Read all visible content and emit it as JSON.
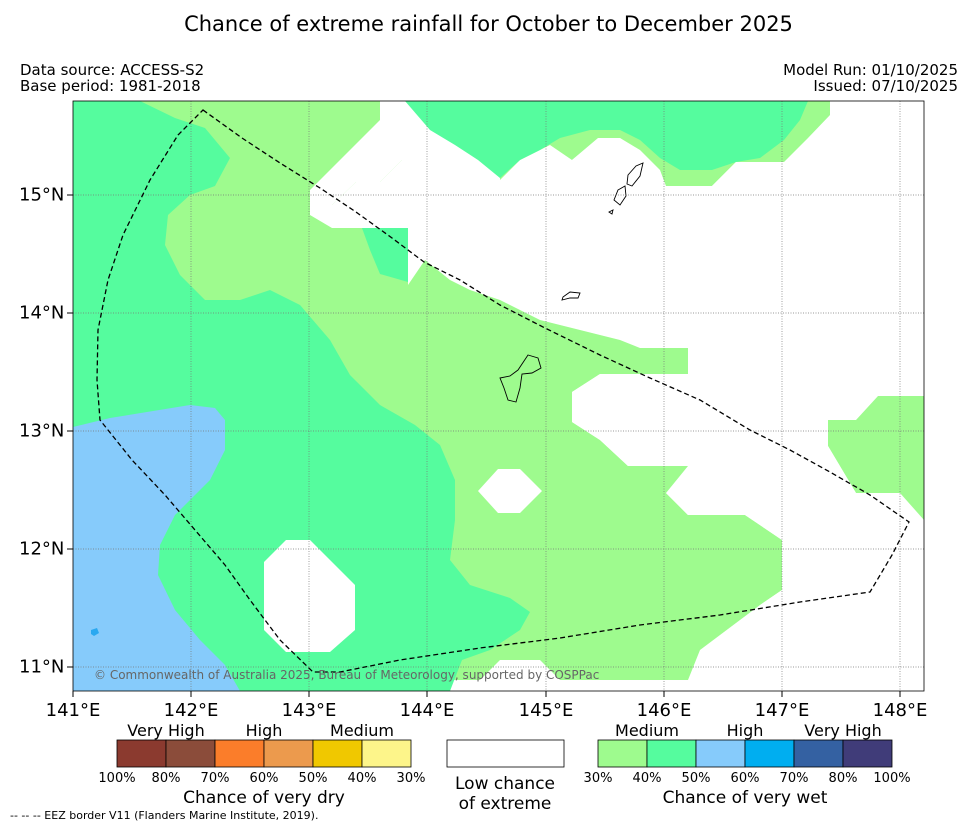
{
  "title": "Chance of extreme rainfall for October to December 2025",
  "data_source": "Data source: ACCESS-S2",
  "base_period": "Base period: 1981-2018",
  "model_run": "Model Run: 01/10/2025",
  "issued": "Issued: 07/10/2025",
  "map": {
    "lon_ticks": [
      "141°E",
      "142°E",
      "143°E",
      "144°E",
      "145°E",
      "146°E",
      "147°E",
      "148°E"
    ],
    "lat_ticks": [
      "15°N",
      "14°N",
      "13°N",
      "12°N",
      "11°N"
    ],
    "copyright": "© Commonwealth of Australia 2025, Bureau of Meteorology, supported by COSPPac"
  },
  "legend": {
    "dry": {
      "categories": [
        "Very High",
        "High",
        "Medium"
      ],
      "colors": [
        "#8b3a2f",
        "#8b4c3a",
        "#fb7d2a",
        "#ec9a4d",
        "#f0c800",
        "#fdf58a"
      ],
      "percents": [
        "100%",
        "80%",
        "70%",
        "60%",
        "50%",
        "40%",
        "30%"
      ],
      "title": "Chance of very dry"
    },
    "low": {
      "line1": "Low chance",
      "line2": "of extreme",
      "color": "#ffffff"
    },
    "wet": {
      "categories": [
        "Medium",
        "High",
        "Very High"
      ],
      "colors": [
        "#9efb8e",
        "#55fc9e",
        "#86cbfb",
        "#00aef0",
        "#3461a2",
        "#403c79"
      ],
      "percents": [
        "30%",
        "40%",
        "50%",
        "60%",
        "70%",
        "80%",
        "100%"
      ],
      "title": "Chance of very wet"
    }
  },
  "footnote": "-- -- -- EEZ border V11 (Flanders Marine Institute, 2019)."
}
